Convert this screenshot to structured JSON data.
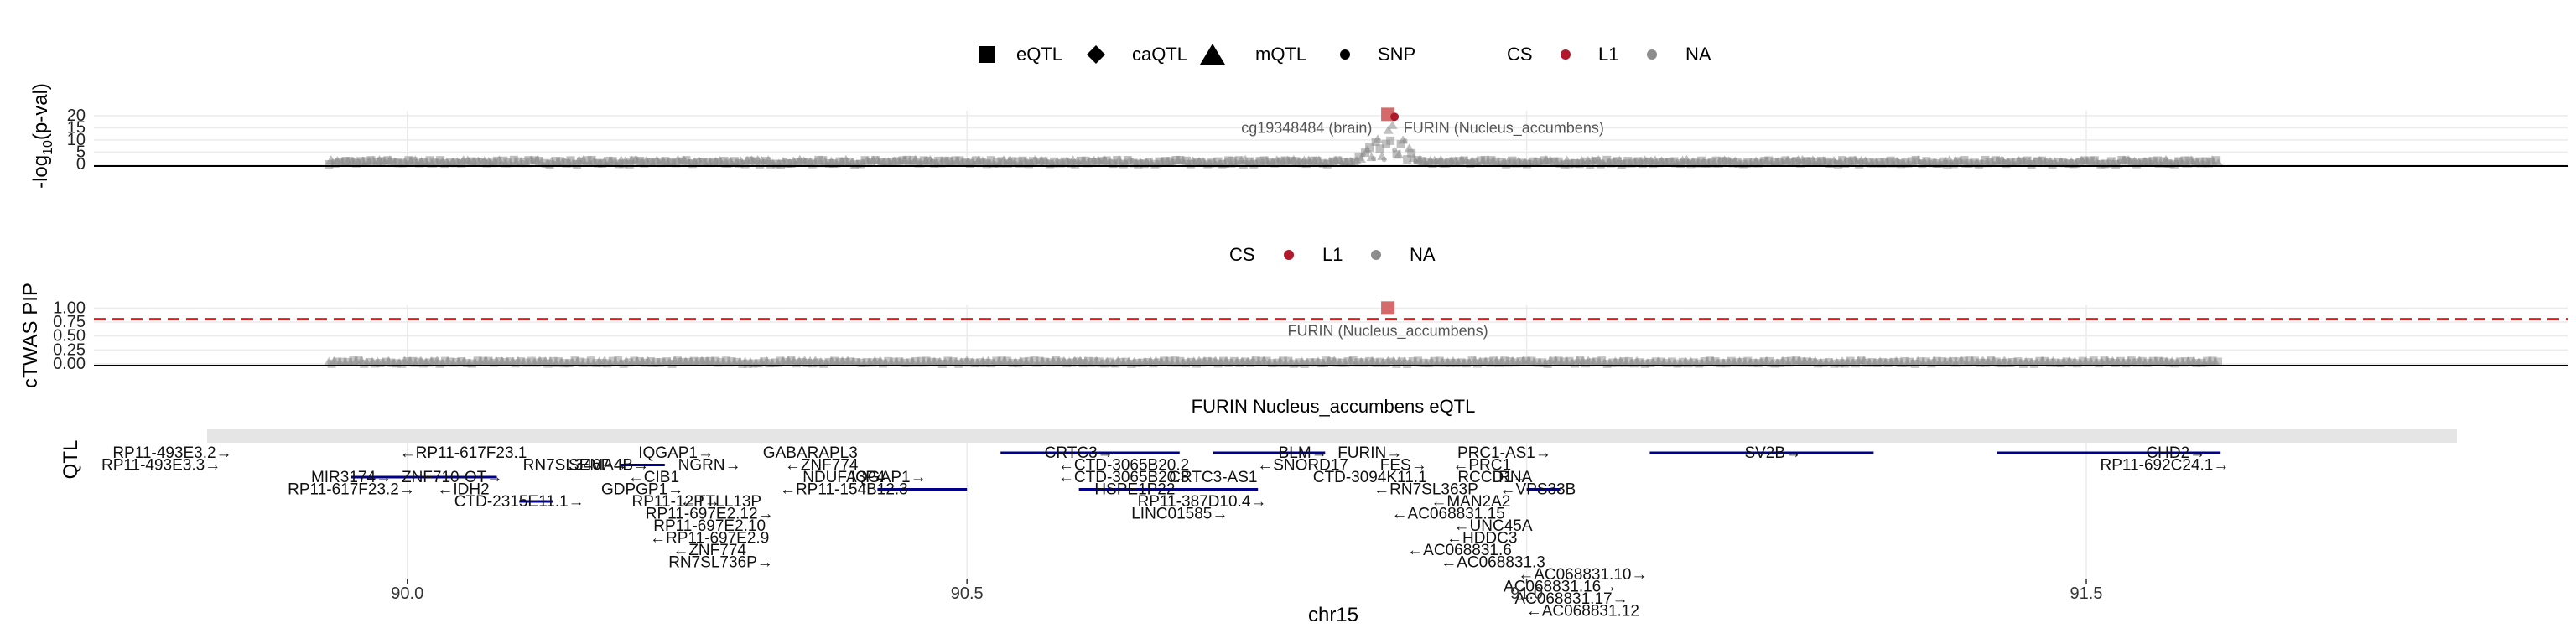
{
  "colors": {
    "cs_l1": "#b2182b",
    "cs_na": "#8c8c8c",
    "highlight": "#d46a6a",
    "threshold": "#e41a1c",
    "gene": "#00008b",
    "facet_strip": "#e5e5e5",
    "grid": "#ebebeb"
  },
  "legend_top": {
    "shapes": [
      {
        "label": "eQTL",
        "icon": "square-icon"
      },
      {
        "label": "caQTL",
        "icon": "diamond-icon"
      },
      {
        "label": "mQTL",
        "icon": "triangle-icon"
      },
      {
        "label": "SNP",
        "icon": "dot-icon"
      }
    ],
    "cs_title": "CS",
    "cs_levels": [
      "L1",
      "NA"
    ]
  },
  "legend_mid": {
    "cs_title": "CS",
    "cs_levels": [
      "L1",
      "NA"
    ]
  },
  "chart_data": [
    {
      "type": "scatter",
      "panel": "gwas",
      "ylabel": "-log10(p-val)",
      "ylabel_main": "-log",
      "ylabel_sub": "10",
      "ylabel_tail": "(p-val)",
      "ylim": [
        0,
        22
      ],
      "yticks": [
        "0",
        "5",
        "10",
        "15",
        "20"
      ],
      "ytick_values": [
        0,
        5,
        10,
        15,
        20
      ],
      "xlim": [
        89.72,
        91.93
      ],
      "x_range_data": [
        89.93,
        91.62
      ],
      "peak_x": 90.876,
      "peak_y": 20.5,
      "annotations": [
        {
          "text": "cg19348484 (brain)",
          "x": 90.862,
          "y": 15,
          "anchor": "end"
        },
        {
          "text": "FURIN (Nucleus_accumbens)",
          "x": 90.89,
          "y": 15,
          "anchor": "start"
        }
      ]
    },
    {
      "type": "scatter",
      "panel": "twas",
      "ylabel": "cTWAS PIP",
      "ylim": [
        0,
        1.05
      ],
      "yticks": [
        "0.00",
        "0.25",
        "0.50",
        "0.75",
        "1.00"
      ],
      "ytick_values": [
        0,
        0.25,
        0.5,
        0.75,
        1.0
      ],
      "threshold": 0.8,
      "xlim": [
        89.72,
        91.93
      ],
      "peak_x": 90.876,
      "peak_y": 1.0,
      "annotations": [
        {
          "text": "FURIN (Nucleus_accumbens)",
          "x": 90.876,
          "y": 0.62,
          "anchor": "middle"
        }
      ]
    },
    {
      "type": "gene_track",
      "panel": "genes",
      "title": "FURIN Nucleus_accumbens eQTL",
      "ylabel_fragment": "QTL",
      "xlabel": "chr15",
      "xlim": [
        89.72,
        91.93
      ],
      "xticks": [
        "90.0",
        "90.5",
        "91.0",
        "91.5"
      ],
      "xtick_values": [
        90.0,
        90.5,
        91.0,
        91.5
      ],
      "genes": [
        {
          "label": "RP11-493E3.2→",
          "x": 89.79,
          "row": 0
        },
        {
          "label": "←RP11-617F23.1",
          "x": 90.05,
          "row": 0
        },
        {
          "label": "RP11-493E3.3→",
          "x": 89.78,
          "row": 1
        },
        {
          "label": "MIR3174→",
          "x": 89.95,
          "row": 2
        },
        {
          "label": "ZNF710-OT→",
          "x": 90.04,
          "row": 2
        },
        {
          "label": "←IDH2",
          "x": 90.05,
          "row": 3
        },
        {
          "label": "RP11-617F23.2→",
          "x": 89.95,
          "row": 3
        },
        {
          "label": "CTD-2315E11.1→",
          "x": 90.1,
          "row": 4
        },
        {
          "label": "RN7SL346P→",
          "x": 90.15,
          "row": 1
        },
        {
          "label": "SEMA4B→",
          "x": 90.18,
          "row": 1
        },
        {
          "label": "IQGAP1→",
          "x": 90.24,
          "row": 0
        },
        {
          "label": "←CIB1",
          "x": 90.22,
          "row": 2
        },
        {
          "label": "NGRN→",
          "x": 90.27,
          "row": 1
        },
        {
          "label": "GDPGP1→",
          "x": 90.21,
          "row": 3
        },
        {
          "label": "RP11-12P→",
          "x": 90.24,
          "row": 4
        },
        {
          "label": "←TTLL13P",
          "x": 90.28,
          "row": 4
        },
        {
          "label": "RP11-697E2.12→",
          "x": 90.27,
          "row": 5
        },
        {
          "label": "RP11-697E2.10",
          "x": 90.27,
          "row": 6
        },
        {
          "label": "←RP11-697E2.9",
          "x": 90.27,
          "row": 7
        },
        {
          "label": "←ZNF774",
          "x": 90.27,
          "row": 8
        },
        {
          "label": "RN7SL736P→",
          "x": 90.28,
          "row": 9
        },
        {
          "label": "GABARAPL3",
          "x": 90.36,
          "row": 0
        },
        {
          "label": "←ZNF774",
          "x": 90.37,
          "row": 1
        },
        {
          "label": "NDUFA3P4",
          "x": 90.39,
          "row": 2
        },
        {
          "label": "←RP11-154B12.3",
          "x": 90.39,
          "row": 3
        },
        {
          "label": "IQGAP1→",
          "x": 90.43,
          "row": 2
        },
        {
          "label": "CRTC3→",
          "x": 90.6,
          "row": 0
        },
        {
          "label": "←CTD-3065B20.2",
          "x": 90.64,
          "row": 1
        },
        {
          "label": "←CTD-3065B20.3",
          "x": 90.64,
          "row": 2
        },
        {
          "label": "HSPE1P22",
          "x": 90.65,
          "row": 3
        },
        {
          "label": "CRTC3-AS1",
          "x": 90.72,
          "row": 2
        },
        {
          "label": "RP11-387D10.4→",
          "x": 90.71,
          "row": 4
        },
        {
          "label": "LINC01585→",
          "x": 90.69,
          "row": 5
        },
        {
          "label": "←SNORD17",
          "x": 90.8,
          "row": 1
        },
        {
          "label": "BLM→",
          "x": 90.8,
          "row": 0
        },
        {
          "label": "CTD-3094K11.1",
          "x": 90.86,
          "row": 2
        },
        {
          "label": "←RN7SL363P",
          "x": 90.91,
          "row": 3
        },
        {
          "label": "FURIN→",
          "x": 90.86,
          "row": 0
        },
        {
          "label": "FES→",
          "x": 90.89,
          "row": 1
        },
        {
          "label": "←MAN2A2",
          "x": 90.95,
          "row": 4
        },
        {
          "label": "←AC068831.15",
          "x": 90.93,
          "row": 5
        },
        {
          "label": "←UNC45A",
          "x": 90.97,
          "row": 6
        },
        {
          "label": "←HDDC3",
          "x": 90.96,
          "row": 7
        },
        {
          "label": "←AC068831.6",
          "x": 90.94,
          "row": 8
        },
        {
          "label": "←AC068831.3",
          "x": 90.97,
          "row": 9
        },
        {
          "label": "RCCD1→",
          "x": 90.97,
          "row": 2
        },
        {
          "label": "←PRC1",
          "x": 90.96,
          "row": 1
        },
        {
          "label": "PRC1-AS1→",
          "x": 90.98,
          "row": 0
        },
        {
          "label": "RNA",
          "x": 90.99,
          "row": 2
        },
        {
          "label": "←VPS33B",
          "x": 91.01,
          "row": 3
        },
        {
          "label": "←AC068831.10→",
          "x": 91.05,
          "row": 10
        },
        {
          "label": "AC068831.16→",
          "x": 91.03,
          "row": 11
        },
        {
          "label": "AC068831.17→",
          "x": 91.04,
          "row": 12
        },
        {
          "label": "←AC068831.12",
          "x": 91.05,
          "row": 13
        },
        {
          "label": "SV2B→",
          "x": 91.22,
          "row": 0
        },
        {
          "label": "CHD2→",
          "x": 91.58,
          "row": 0
        },
        {
          "label": "RP11-692C24.1→",
          "x": 91.57,
          "row": 1
        }
      ],
      "gene_bars": [
        {
          "x0": 89.95,
          "x1": 90.08,
          "row": 2
        },
        {
          "x0": 90.1,
          "x1": 90.13,
          "row": 4
        },
        {
          "x0": 90.19,
          "x1": 90.23,
          "row": 1
        },
        {
          "x0": 90.42,
          "x1": 90.5,
          "row": 3
        },
        {
          "x0": 90.53,
          "x1": 90.69,
          "row": 0
        },
        {
          "x0": 90.6,
          "x1": 90.76,
          "row": 3
        },
        {
          "x0": 90.72,
          "x1": 90.82,
          "row": 0
        },
        {
          "x0": 91.0,
          "x1": 91.03,
          "row": 3
        },
        {
          "x0": 91.11,
          "x1": 91.31,
          "row": 0
        },
        {
          "x0": 91.42,
          "x1": 91.62,
          "row": 0
        }
      ]
    }
  ]
}
